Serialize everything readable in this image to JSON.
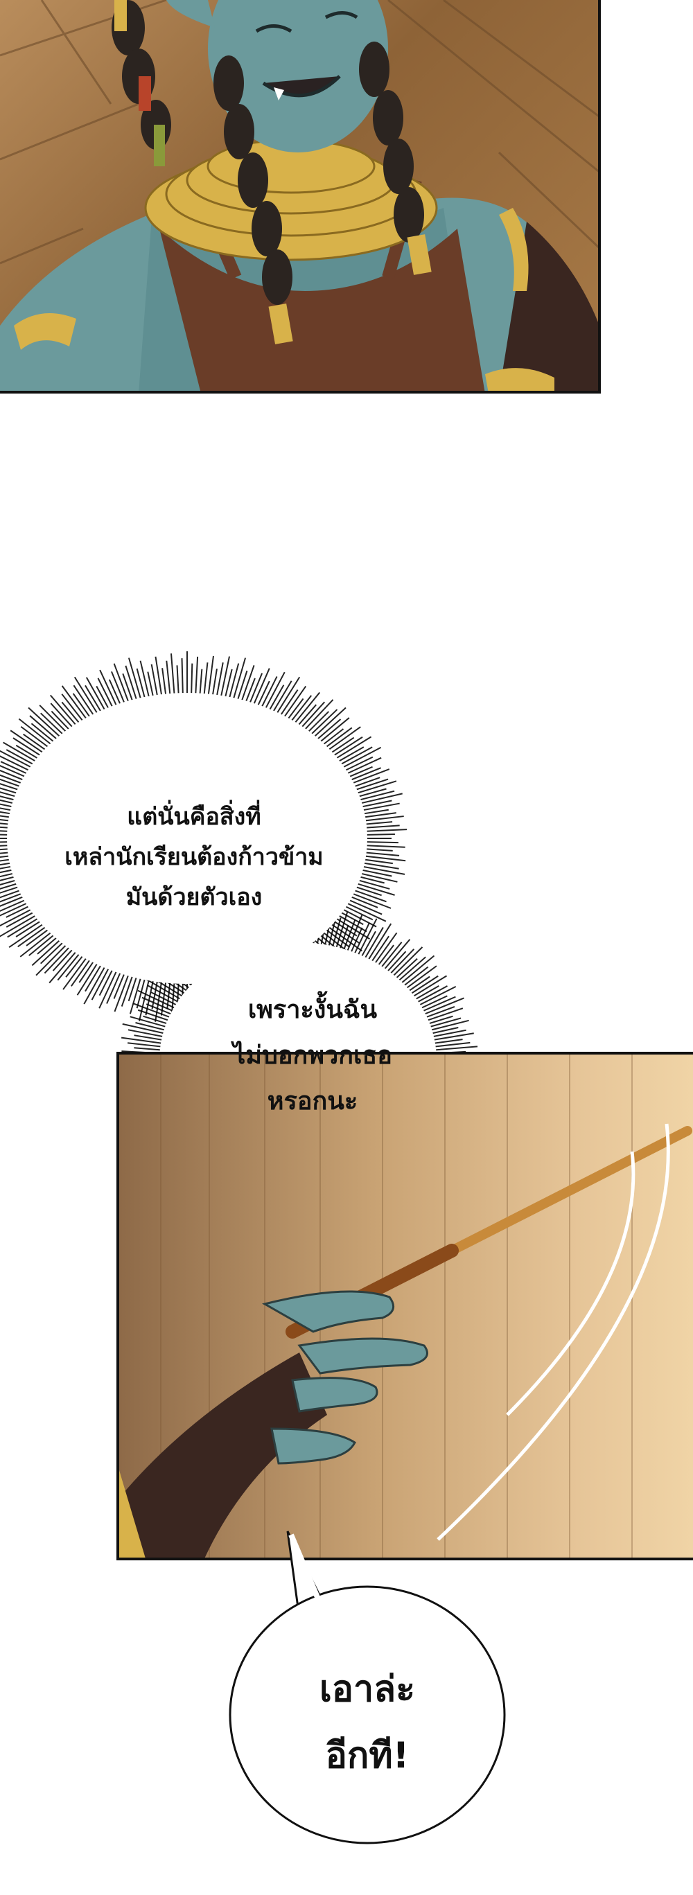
{
  "bubbles": {
    "bubble1": {
      "line1": "แต่นั่นคือสิ่งที่",
      "line2": "เหล่านักเรียนต้องก้าวข้าม",
      "line3": "มันด้วยตัวเอง"
    },
    "bubble2": {
      "line1": "เพราะงั้นฉัน",
      "line2": "ไม่บอกพวกเธอ",
      "line3": "หรอกนะ"
    },
    "bubble3": {
      "line1": "เอาล่ะ",
      "line2": "อีกที!"
    }
  },
  "colors": {
    "skin": "#6b9a9c",
    "skin_shadow": "#4e7a80",
    "apron": "#6a3d28",
    "gold": "#d8b24a",
    "floor": "#a27445",
    "wand": "#c88a3a",
    "glove": "#3a2620"
  }
}
